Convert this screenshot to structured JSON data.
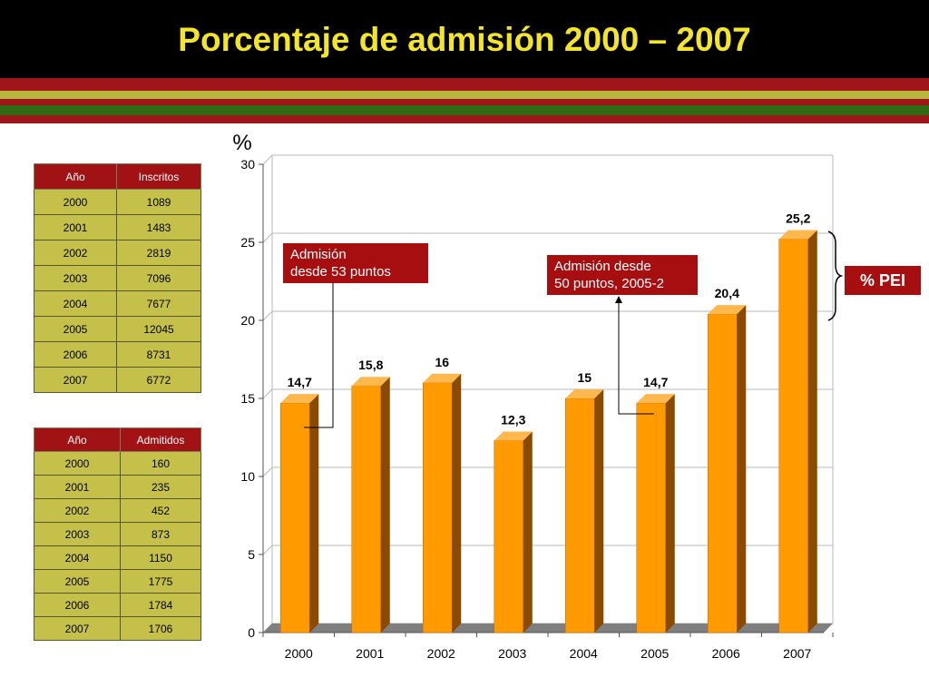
{
  "slide": {
    "title": "Porcentaje de admisión 2000 – 2007"
  },
  "colors": {
    "title_text": "#f2e52a",
    "header_bg": "#000000",
    "table_header": "#a01214",
    "table_cell": "#c4c04a",
    "bar_front": "#ff9a00",
    "bar_side": "#8a4a00",
    "callout_bg": "#a60e10"
  },
  "table_inscritos": {
    "headers": [
      "Año",
      "Inscritos"
    ],
    "rows": [
      [
        "2000",
        "1089"
      ],
      [
        "2001",
        "1483"
      ],
      [
        "2002",
        "2819"
      ],
      [
        "2003",
        "7096"
      ],
      [
        "2004",
        "7677"
      ],
      [
        "2005",
        "12045"
      ],
      [
        "2006",
        "8731"
      ],
      [
        "2007",
        "6772"
      ]
    ]
  },
  "table_admitidos": {
    "headers": [
      "Año",
      "Admitidos"
    ],
    "rows": [
      [
        "2000",
        "160"
      ],
      [
        "2001",
        "235"
      ],
      [
        "2002",
        "452"
      ],
      [
        "2003",
        "873"
      ],
      [
        "2004",
        "1150"
      ],
      [
        "2005",
        "1775"
      ],
      [
        "2006",
        "1784"
      ],
      [
        "2007",
        "1706"
      ]
    ]
  },
  "annotations": {
    "callout_1": "Admisión\ndesde 53 puntos",
    "callout_2": "Admisión desde\n50 puntos, 2005-2",
    "pei_label": "% PEI"
  },
  "chart_data": {
    "type": "bar",
    "title": "",
    "ylabel": "%",
    "xlabel": "",
    "categories": [
      "2000",
      "2001",
      "2002",
      "2003",
      "2004",
      "2005",
      "2006",
      "2007"
    ],
    "values": [
      14.7,
      15.8,
      16,
      12.3,
      15,
      14.7,
      20.4,
      25.2
    ],
    "data_labels": [
      "14,7",
      "15,8",
      "16",
      "12,3",
      "15",
      "14,7",
      "20,4",
      "25,2"
    ],
    "ylim": [
      0,
      30
    ],
    "yticks": [
      0,
      5,
      10,
      15,
      20,
      25,
      30
    ],
    "grid": true,
    "style": "3d-column"
  }
}
